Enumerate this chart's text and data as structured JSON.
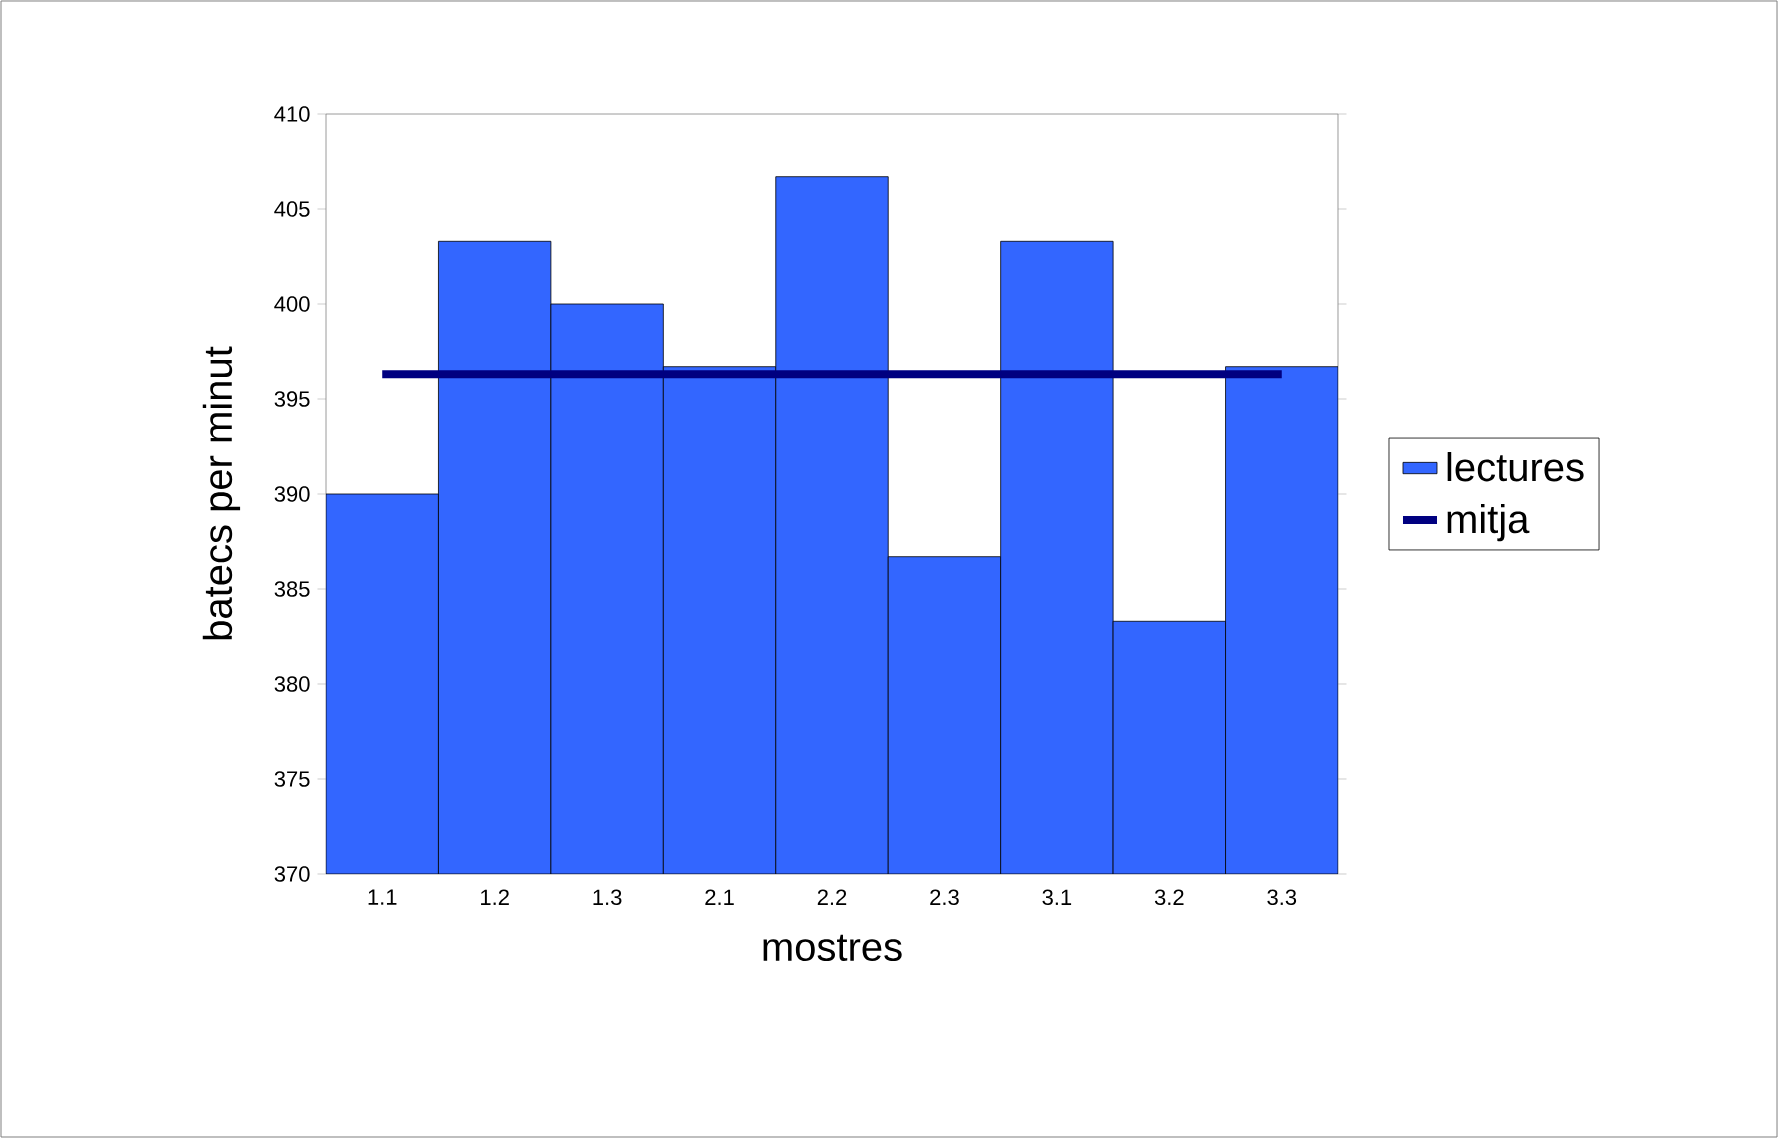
{
  "chart_data": {
    "type": "bar",
    "xlabel": "mostres",
    "ylabel": "batecs per minut",
    "categories": [
      "1.1",
      "1.2",
      "1.3",
      "2.1",
      "2.2",
      "2.3",
      "3.1",
      "3.2",
      "3.3"
    ],
    "series": [
      {
        "name": "lectures",
        "color": "#3366ff",
        "values": [
          390,
          403.3,
          400,
          396.7,
          406.7,
          386.7,
          403.3,
          383.3,
          396.7
        ]
      },
      {
        "name": "mitja",
        "type": "line",
        "color": "#000080",
        "values": [
          396.3,
          396.3,
          396.3,
          396.3,
          396.3,
          396.3,
          396.3,
          396.3,
          396.3
        ]
      }
    ],
    "ylim": [
      370,
      410
    ],
    "yticks": [
      370,
      375,
      380,
      385,
      390,
      395,
      400,
      405,
      410
    ],
    "legend": "right",
    "grid": false
  }
}
